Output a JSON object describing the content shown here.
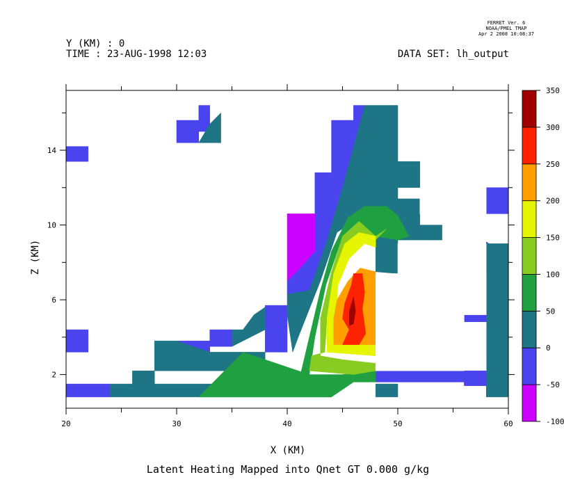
{
  "header": {
    "ferret_version": "FERRET Ver. 6",
    "ferret_org": "NOAA/PMEL TMAP",
    "ferret_date": "Apr  2 2008 10:08:37",
    "y_label": "Y (KM) : 0",
    "time_label": "TIME : 23-AUG-1998 12:03",
    "dataset_label": "DATA SET: lh_output"
  },
  "chart_data": {
    "type": "heatmap",
    "title": "Latent Heating Mapped into Qnet GT 0.000 g/kg",
    "xlabel": "X (KM)",
    "ylabel": "Z (KM)",
    "xlim": [
      20,
      60
    ],
    "ylim": [
      0.2,
      17.2
    ],
    "x_ticks": [
      20,
      30,
      40,
      50,
      60
    ],
    "y_ticks": [
      2,
      6,
      10,
      14
    ],
    "colorbar": {
      "levels": [
        -100,
        -50,
        0,
        50,
        100,
        150,
        200,
        250,
        300,
        350
      ],
      "labels": [
        "350",
        "300",
        "250",
        "200",
        "150",
        "100",
        "50",
        "0",
        "-50",
        "-100"
      ],
      "colors": [
        "#cc00ff",
        "#4a44ee",
        "#1e7585",
        "#20a040",
        "#88cc22",
        "#e6f500",
        "#ffa000",
        "#ff2200",
        "#a00000"
      ]
    },
    "regions": [
      {
        "level": "-50..0",
        "color": "#4a44ee",
        "points": [
          [
            20,
            0.8
          ],
          [
            24,
            0.8
          ],
          [
            24,
            1.5
          ],
          [
            20,
            1.5
          ]
        ]
      },
      {
        "level": "-50..0",
        "color": "#4a44ee",
        "points": [
          [
            20,
            3.2
          ],
          [
            22,
            3.2
          ],
          [
            22,
            4.4
          ],
          [
            20,
            4.4
          ]
        ]
      },
      {
        "level": "-50..0",
        "color": "#4a44ee",
        "points": [
          [
            20,
            13.4
          ],
          [
            22,
            13.4
          ],
          [
            22,
            14.2
          ],
          [
            20,
            14.2
          ]
        ]
      },
      {
        "level": "-50..0",
        "color": "#4a44ee",
        "points": [
          [
            30,
            14.4
          ],
          [
            32,
            14.4
          ],
          [
            32,
            15.0
          ],
          [
            33,
            15.0
          ],
          [
            33,
            16.4
          ],
          [
            32,
            16.4
          ],
          [
            32,
            15.6
          ],
          [
            30,
            15.6
          ]
        ]
      },
      {
        "level": "-50..0",
        "color": "#4a44ee",
        "points": [
          [
            30,
            3.2
          ],
          [
            33,
            3.2
          ],
          [
            33,
            3.8
          ],
          [
            30,
            3.8
          ]
        ]
      },
      {
        "level": "-50..0",
        "color": "#4a44ee",
        "points": [
          [
            33,
            3.5
          ],
          [
            35,
            3.5
          ],
          [
            35,
            4.4
          ],
          [
            33,
            4.4
          ]
        ]
      },
      {
        "level": "-50..0",
        "color": "#4a44ee",
        "points": [
          [
            38,
            3.2
          ],
          [
            40,
            3.2
          ],
          [
            40,
            5.7
          ],
          [
            38,
            5.7
          ],
          [
            38,
            4.5
          ]
        ]
      },
      {
        "level": "-50..0",
        "color": "#4a44ee",
        "points": [
          [
            40,
            7.0
          ],
          [
            41,
            7.6
          ],
          [
            42.5,
            8.6
          ],
          [
            42.5,
            12.8
          ],
          [
            44,
            12.8
          ],
          [
            44,
            15.6
          ],
          [
            46,
            15.6
          ],
          [
            46,
            16.4
          ],
          [
            47,
            16.4
          ],
          [
            45,
            12
          ],
          [
            43.5,
            9
          ],
          [
            42,
            6.5
          ],
          [
            40,
            6.3
          ]
        ]
      },
      {
        "level": "-50..0",
        "color": "#4a44ee",
        "points": [
          [
            48,
            1.6
          ],
          [
            56,
            1.6
          ],
          [
            56,
            2.2
          ],
          [
            48,
            2.2
          ]
        ]
      },
      {
        "level": "-50..0",
        "color": "#4a44ee",
        "points": [
          [
            56,
            2.2
          ],
          [
            58,
            2.2
          ],
          [
            58,
            1.4
          ],
          [
            56,
            1.4
          ]
        ]
      },
      {
        "level": "-50..0",
        "color": "#4a44ee",
        "points": [
          [
            56,
            4.6
          ],
          [
            58,
            4.6
          ],
          [
            58,
            5.2
          ],
          [
            56,
            5.2
          ]
        ]
      },
      {
        "level": "-50..0",
        "color": "#4a44ee",
        "points": [
          [
            58,
            10.6
          ],
          [
            60,
            10.6
          ],
          [
            60,
            12.0
          ],
          [
            58,
            12.0
          ]
        ]
      },
      {
        "level": "-50..0",
        "color": "#4a44ee",
        "points": [
          [
            58,
            3.0
          ],
          [
            59,
            3.5
          ],
          [
            59,
            4.8
          ],
          [
            58,
            4.8
          ]
        ]
      },
      {
        "level": "-50..0",
        "color": "#4a44ee",
        "points": [
          [
            58,
            8.8
          ],
          [
            58.5,
            8.9
          ],
          [
            58,
            9.1
          ]
        ]
      },
      {
        "level": "-100..-50",
        "color": "#cc00ff",
        "points": [
          [
            40,
            7.0
          ],
          [
            41,
            7.6
          ],
          [
            42.5,
            8.6
          ],
          [
            42.5,
            10.6
          ],
          [
            40,
            10.6
          ]
        ]
      },
      {
        "level": "0..50",
        "color": "#1e7585",
        "points": [
          [
            24,
            0.8
          ],
          [
            44,
            0.8
          ],
          [
            44,
            1.5
          ],
          [
            24,
            1.5
          ]
        ]
      },
      {
        "level": "0..50",
        "color": "#1e7585",
        "points": [
          [
            26,
            1.5
          ],
          [
            28,
            1.5
          ],
          [
            28,
            2.2
          ],
          [
            26,
            2.2
          ]
        ]
      },
      {
        "level": "0..50",
        "color": "#1e7585",
        "points": [
          [
            28,
            2.2
          ],
          [
            38,
            2.2
          ],
          [
            38,
            3.2
          ],
          [
            33,
            3.2
          ],
          [
            30,
            3.8
          ],
          [
            28,
            3.8
          ]
        ]
      },
      {
        "level": "0..50",
        "color": "#1e7585",
        "points": [
          [
            35,
            3.5
          ],
          [
            38,
            4.4
          ],
          [
            38,
            5.6
          ],
          [
            37,
            5.2
          ],
          [
            36,
            4.4
          ],
          [
            35,
            4.4
          ]
        ]
      },
      {
        "level": "0..50",
        "color": "#1e7585",
        "points": [
          [
            32,
            14.4
          ],
          [
            34,
            14.4
          ],
          [
            34,
            16.0
          ],
          [
            33,
            15.4
          ]
        ]
      },
      {
        "level": "0..50",
        "color": "#1e7585",
        "points": [
          [
            40,
            5.2
          ],
          [
            40,
            6.3
          ],
          [
            42,
            6.5
          ],
          [
            43.5,
            9
          ],
          [
            45,
            12
          ],
          [
            47,
            16.4
          ],
          [
            50,
            16.4
          ],
          [
            50,
            13.4
          ],
          [
            52,
            13.4
          ],
          [
            52,
            12.0
          ],
          [
            50,
            12.0
          ],
          [
            50,
            11.4
          ],
          [
            52,
            11.4
          ],
          [
            52,
            10.0
          ],
          [
            54,
            10.0
          ],
          [
            54,
            9.2
          ],
          [
            50,
            9.2
          ],
          [
            50,
            7.4
          ],
          [
            48,
            7.5
          ],
          [
            48,
            9.4
          ],
          [
            46.5,
            10.4
          ],
          [
            44.5,
            9.6
          ],
          [
            43,
            7
          ],
          [
            42,
            5.5
          ],
          [
            41,
            4
          ],
          [
            40.5,
            3.2
          ]
        ]
      },
      {
        "level": "0..50",
        "color": "#1e7585",
        "points": [
          [
            58,
            0.8
          ],
          [
            60,
            0.8
          ],
          [
            60,
            9.0
          ],
          [
            58,
            9.0
          ]
        ]
      },
      {
        "level": "0..50",
        "color": "#1e7585",
        "points": [
          [
            48,
            0.8
          ],
          [
            50,
            0.8
          ],
          [
            50,
            1.5
          ],
          [
            48,
            1.5
          ]
        ]
      },
      {
        "level": "50..100",
        "color": "#20a040",
        "points": [
          [
            32,
            0.8
          ],
          [
            44,
            0.8
          ],
          [
            46,
            1.6
          ],
          [
            48,
            1.6
          ],
          [
            48,
            2.2
          ],
          [
            45,
            2.0
          ],
          [
            42,
            2.0
          ],
          [
            40,
            2.4
          ],
          [
            38,
            2.8
          ],
          [
            36,
            3.2
          ]
        ]
      },
      {
        "level": "50..100",
        "color": "#20a040",
        "points": [
          [
            41.2,
            2.0
          ],
          [
            42,
            4.0
          ],
          [
            43,
            6.5
          ],
          [
            44,
            8.6
          ],
          [
            45.5,
            10.4
          ],
          [
            47,
            11.0
          ],
          [
            49,
            11.0
          ],
          [
            50,
            10.5
          ],
          [
            51,
            9.4
          ],
          [
            50,
            9.2
          ],
          [
            48,
            9.4
          ],
          [
            46.5,
            10.2
          ],
          [
            45,
            9.4
          ],
          [
            43.5,
            6.8
          ],
          [
            42.5,
            4.0
          ],
          [
            42,
            2.0
          ]
        ]
      },
      {
        "level": "100..150",
        "color": "#88cc22",
        "points": [
          [
            42,
            2.2
          ],
          [
            46,
            2.0
          ],
          [
            48,
            2.2
          ],
          [
            48,
            2.6
          ],
          [
            45,
            2.8
          ],
          [
            43,
            3.0
          ],
          [
            43,
            5.0
          ],
          [
            44,
            7.5
          ],
          [
            45,
            9.4
          ],
          [
            46.5,
            10.2
          ],
          [
            48,
            9.4
          ],
          [
            49,
            9.8
          ],
          [
            48,
            9.2
          ],
          [
            46.5,
            9.6
          ],
          [
            45.2,
            9.0
          ],
          [
            44.2,
            7.4
          ],
          [
            43.6,
            5.0
          ],
          [
            43.4,
            3.2
          ],
          [
            42.2,
            3.0
          ]
        ]
      },
      {
        "level": "150..200",
        "color": "#e6f500",
        "points": [
          [
            43.6,
            3.2
          ],
          [
            48,
            3.0
          ],
          [
            48,
            3.6
          ],
          [
            45.2,
            3.6
          ],
          [
            44.4,
            5.0
          ],
          [
            44.6,
            6.8
          ],
          [
            45.6,
            8.2
          ],
          [
            47,
            9.0
          ],
          [
            48,
            8.8
          ],
          [
            48,
            9.4
          ],
          [
            46.5,
            9.6
          ],
          [
            45.2,
            9.0
          ],
          [
            44.2,
            7.4
          ],
          [
            43.6,
            5.0
          ]
        ]
      },
      {
        "level": "200..250",
        "color": "#ffa000",
        "points": [
          [
            44.2,
            3.6
          ],
          [
            48,
            3.6
          ],
          [
            48,
            7.5
          ],
          [
            46.6,
            7.7
          ],
          [
            45.5,
            7.0
          ],
          [
            44.5,
            6.0
          ],
          [
            44.2,
            5.0
          ]
        ]
      },
      {
        "level": "300..350",
        "color": "#a00000",
        "points": [
          [
            45.6,
            4.6
          ],
          [
            46,
            4.7
          ],
          [
            46.2,
            5.4
          ],
          [
            46,
            6.2
          ],
          [
            45.6,
            5.4
          ]
        ]
      }
    ],
    "bands": [
      {
        "level": "250..300",
        "color": "#ff2200",
        "points": [
          [
            45,
            3.6
          ],
          [
            46.5,
            3.6
          ],
          [
            47.1,
            4.2
          ],
          [
            46.8,
            5.5
          ],
          [
            47,
            6.4
          ],
          [
            46.8,
            7.4
          ],
          [
            46,
            7.4
          ],
          [
            45.8,
            6.8
          ],
          [
            45.2,
            5.8
          ],
          [
            45,
            5.0
          ],
          [
            45.6,
            4.4
          ]
        ]
      }
    ],
    "masks": [
      {
        "points": [
          [
            50,
            2.2
          ],
          [
            56,
            2.2
          ],
          [
            56,
            4.6
          ],
          [
            58,
            4.6
          ],
          [
            58,
            2.2
          ],
          [
            58,
            3.0
          ],
          [
            58,
            4.8
          ],
          [
            56,
            4.8
          ],
          [
            56,
            5.2
          ],
          [
            58,
            5.2
          ],
          [
            58,
            7.4
          ],
          [
            48,
            7.4
          ],
          [
            48,
            2.2
          ]
        ]
      },
      {
        "points": [
          [
            50,
            7.4
          ],
          [
            58,
            7.4
          ],
          [
            58,
            9.0
          ],
          [
            50,
            9.0
          ]
        ]
      },
      {
        "points": [
          [
            52,
            10.6
          ],
          [
            58,
            10.6
          ],
          [
            58,
            12.0
          ],
          [
            52,
            12.0
          ]
        ]
      },
      {
        "points": [
          [
            56,
            5.2
          ],
          [
            58,
            5.2
          ],
          [
            58,
            7.4
          ],
          [
            56,
            7.4
          ]
        ]
      }
    ]
  }
}
